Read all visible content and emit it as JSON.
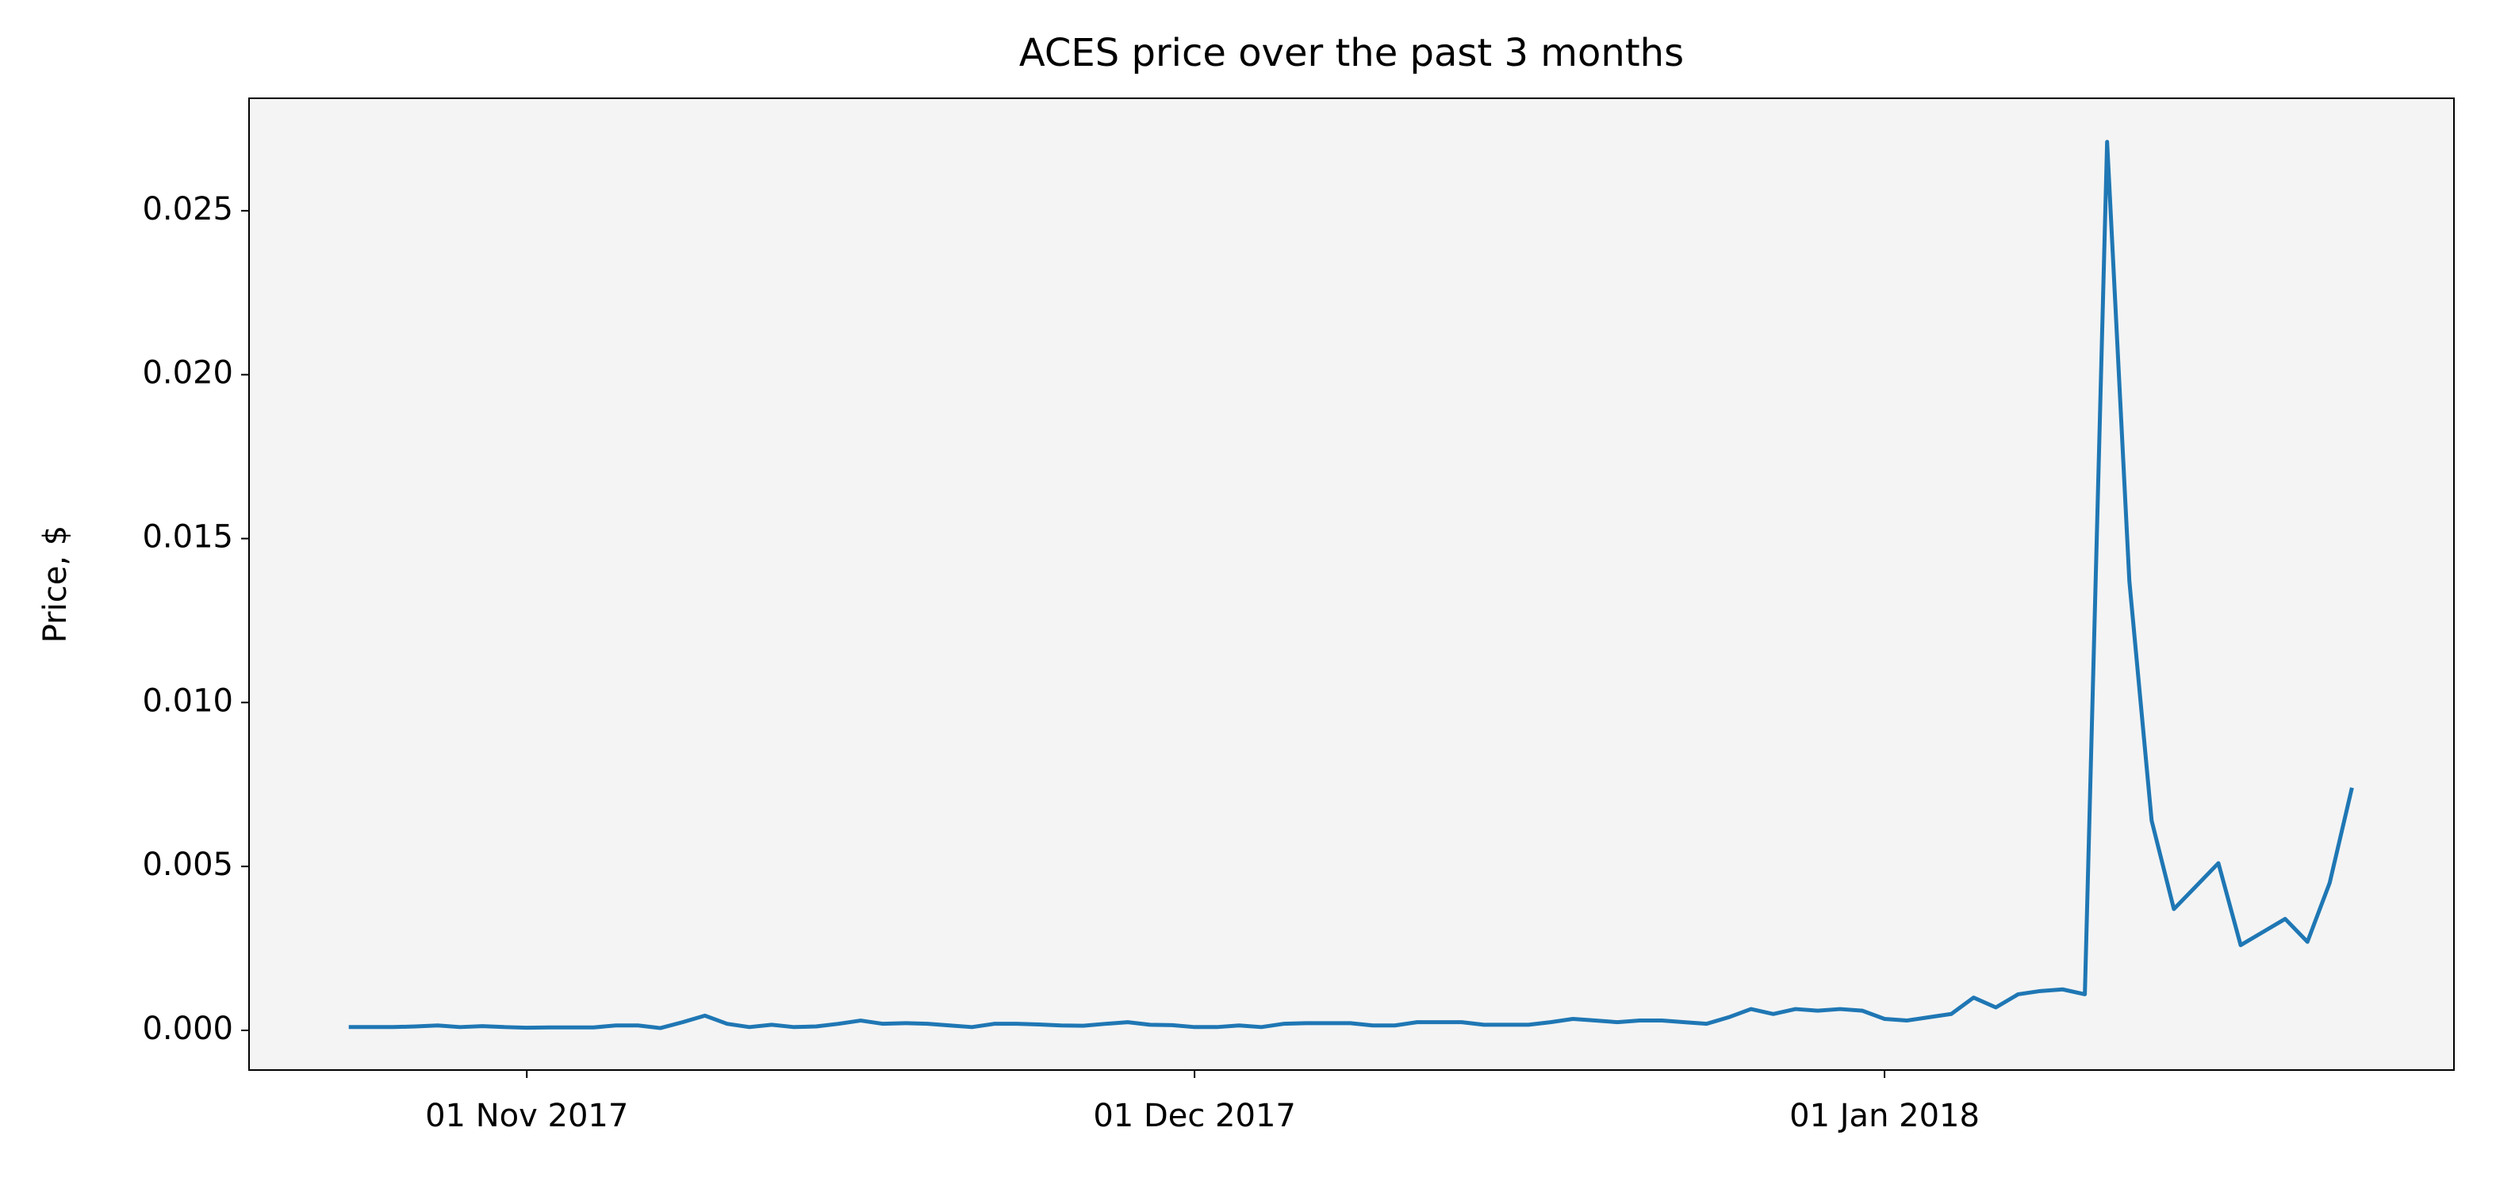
{
  "chart_data": {
    "type": "line",
    "title": "ACES price over the past 3 months",
    "y_label": "Price, $",
    "x": [
      "2017-10-24",
      "2017-10-25",
      "2017-10-26",
      "2017-10-27",
      "2017-10-28",
      "2017-10-29",
      "2017-10-30",
      "2017-10-31",
      "2017-11-01",
      "2017-11-02",
      "2017-11-03",
      "2017-11-04",
      "2017-11-05",
      "2017-11-06",
      "2017-11-07",
      "2017-11-08",
      "2017-11-09",
      "2017-11-10",
      "2017-11-11",
      "2017-11-12",
      "2017-11-13",
      "2017-11-14",
      "2017-11-15",
      "2017-11-16",
      "2017-11-17",
      "2017-11-18",
      "2017-11-19",
      "2017-11-20",
      "2017-11-21",
      "2017-11-22",
      "2017-11-23",
      "2017-11-24",
      "2017-11-25",
      "2017-11-26",
      "2017-11-27",
      "2017-11-28",
      "2017-11-29",
      "2017-11-30",
      "2017-12-01",
      "2017-12-02",
      "2017-12-03",
      "2017-12-04",
      "2017-12-05",
      "2017-12-06",
      "2017-12-07",
      "2017-12-08",
      "2017-12-09",
      "2017-12-10",
      "2017-12-11",
      "2017-12-12",
      "2017-12-13",
      "2017-12-14",
      "2017-12-15",
      "2017-12-16",
      "2017-12-17",
      "2017-12-18",
      "2017-12-19",
      "2017-12-20",
      "2017-12-21",
      "2017-12-22",
      "2017-12-23",
      "2017-12-24",
      "2017-12-25",
      "2017-12-26",
      "2017-12-27",
      "2017-12-28",
      "2017-12-29",
      "2017-12-30",
      "2017-12-31",
      "2018-01-01",
      "2018-01-02",
      "2018-01-03",
      "2018-01-04",
      "2018-01-05",
      "2018-01-06",
      "2018-01-07",
      "2018-01-08",
      "2018-01-09",
      "2018-01-10",
      "2018-01-11",
      "2018-01-12",
      "2018-01-13",
      "2018-01-14",
      "2018-01-15",
      "2018-01-16",
      "2018-01-17",
      "2018-01-18",
      "2018-01-19",
      "2018-01-20",
      "2018-01-21",
      "2018-01-22"
    ],
    "series": [
      {
        "color": "#1f77b4",
        "values": [
          0.0001,
          0.0001,
          0.0001,
          0.00012,
          0.00015,
          0.0001,
          0.00013,
          0.0001,
          8e-05,
          9e-05,
          9e-05,
          9e-05,
          0.00015,
          0.00015,
          7e-05,
          0.00025,
          0.00045,
          0.0002,
          0.0001,
          0.00017,
          0.0001,
          0.00012,
          0.0002,
          0.0003,
          0.0002,
          0.00022,
          0.0002,
          0.00015,
          0.0001,
          0.0002,
          0.0002,
          0.00018,
          0.00015,
          0.00014,
          0.0002,
          0.00025,
          0.00017,
          0.00016,
          0.0001,
          0.0001,
          0.00015,
          0.0001,
          0.0002,
          0.00022,
          0.00022,
          0.00022,
          0.00015,
          0.00015,
          0.00025,
          0.00025,
          0.00025,
          0.00017,
          0.00017,
          0.00017,
          0.00025,
          0.00035,
          0.0003,
          0.00025,
          0.0003,
          0.0003,
          0.00025,
          0.0002,
          0.0004,
          0.00065,
          0.0005,
          0.00065,
          0.0006,
          0.00065,
          0.0006,
          0.00035,
          0.0003,
          0.0004,
          0.0005,
          0.001,
          0.0007,
          0.0011,
          0.0012,
          0.00125,
          0.0011,
          0.0271,
          0.0137,
          0.0064,
          0.0037,
          0.0044,
          0.0051,
          0.0026,
          0.003,
          0.0034,
          0.0027,
          0.0045,
          0.0074
        ]
      }
    ],
    "xlim": [
      "2017-10-19T12:30Z",
      "2018-01-26T14:00Z"
    ],
    "xticks": [
      {
        "value": "2017-11-01",
        "label": "01 Nov 2017"
      },
      {
        "value": "2017-12-01",
        "label": "01 Dec 2017"
      },
      {
        "value": "2018-01-01",
        "label": "01 Jan 2018"
      }
    ],
    "ylim": [
      -0.00121,
      0.02843
    ],
    "yticks": [
      {
        "value": 0,
        "label": "0.000"
      },
      {
        "value": 0.005,
        "label": "0.005"
      },
      {
        "value": 0.01,
        "label": "0.010"
      },
      {
        "value": 0.015,
        "label": "0.015"
      },
      {
        "value": 0.02,
        "label": "0.020"
      },
      {
        "value": 0.025,
        "label": "0.025"
      }
    ],
    "background": "#f4f4f4"
  }
}
